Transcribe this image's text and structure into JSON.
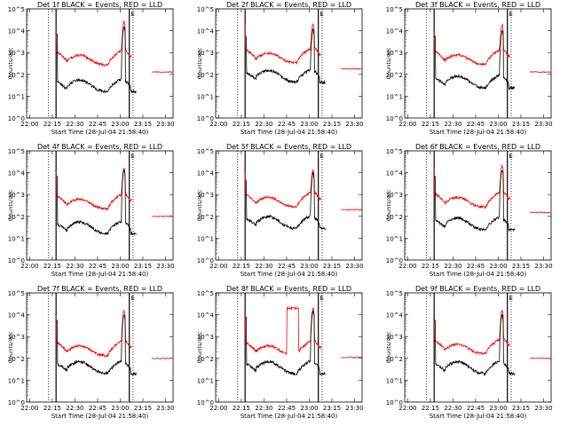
{
  "chart_data": {
    "type": "line",
    "yscale": "log",
    "ylim": [
      1,
      100000
    ],
    "ylabel": "Counts/sec",
    "xlabel": "Start Time (28-Jul-04 21:58:40)",
    "x_ticks": [
      "22:00",
      "22:15",
      "22:30",
      "22:45",
      "23:00",
      "23:15",
      "23:30"
    ],
    "y_ticks": [
      "10^0",
      "10^1",
      "10^2",
      "10^3",
      "10^4",
      "10^5"
    ],
    "series_colors": {
      "events": "#000000",
      "lld": "#ff0000"
    },
    "marker_label": "E",
    "panels": [
      {
        "title": "Det 1f BLACK = Events, RED = LLD",
        "lld_peak": 25000,
        "lld_base": 300,
        "ev_base": 20,
        "ev_peak": 15000,
        "tail": 130,
        "tail_start": "23:17",
        "spike": 8000
      },
      {
        "title": "Det 2f BLACK = Events, RED = LLD",
        "lld_peak": 20000,
        "lld_base": 380,
        "ev_base": 55,
        "ev_peak": 12000,
        "tail": 180,
        "tail_start": "23:17",
        "spike": 20000
      },
      {
        "title": "Det 3f BLACK = Events, RED = LLD",
        "lld_peak": 18000,
        "lld_base": 320,
        "ev_base": 30,
        "ev_peak": 10000,
        "tail": 130,
        "tail_start": "23:17",
        "spike": 10000
      },
      {
        "title": "Det 4f BLACK = Events, RED = LLD",
        "lld_peak": 15000,
        "lld_base": 250,
        "ev_base": 20,
        "ev_peak": 13000,
        "tail": 100,
        "tail_start": "23:17",
        "spike": 12000
      },
      {
        "title": "Det 5f BLACK = Events, RED = LLD",
        "lld_peak": 12000,
        "lld_base": 300,
        "ev_base": 35,
        "ev_peak": 9000,
        "tail": 200,
        "tail_start": "23:17",
        "spike": 12000
      },
      {
        "title": "Det 6f BLACK = Events, RED = LLD",
        "lld_peak": 20000,
        "lld_base": 300,
        "ev_base": 30,
        "ev_peak": 14000,
        "tail": 150,
        "tail_start": "23:17",
        "spike": 14000
      },
      {
        "title": "Det 7f BLACK = Events, RED = LLD",
        "lld_peak": 15000,
        "lld_base": 150,
        "ev_base": 25,
        "ev_peak": 10000,
        "tail": 100,
        "tail_start": "23:17",
        "spike": 10000
      },
      {
        "title": "Det 8f BLACK = Events, RED = LLD",
        "lld_peak": 20000,
        "lld_base": 150,
        "ev_base": 25,
        "ev_peak": 15000,
        "tail": 110,
        "tail_start": "23:17",
        "spike": 10000,
        "plateau": 20000
      },
      {
        "title": "Det 9f BLACK = Events, RED = LLD",
        "lld_peak": 15000,
        "lld_base": 180,
        "ev_base": 25,
        "ev_peak": 10000,
        "tail": 100,
        "tail_start": "23:17",
        "spike": 6000
      }
    ]
  }
}
